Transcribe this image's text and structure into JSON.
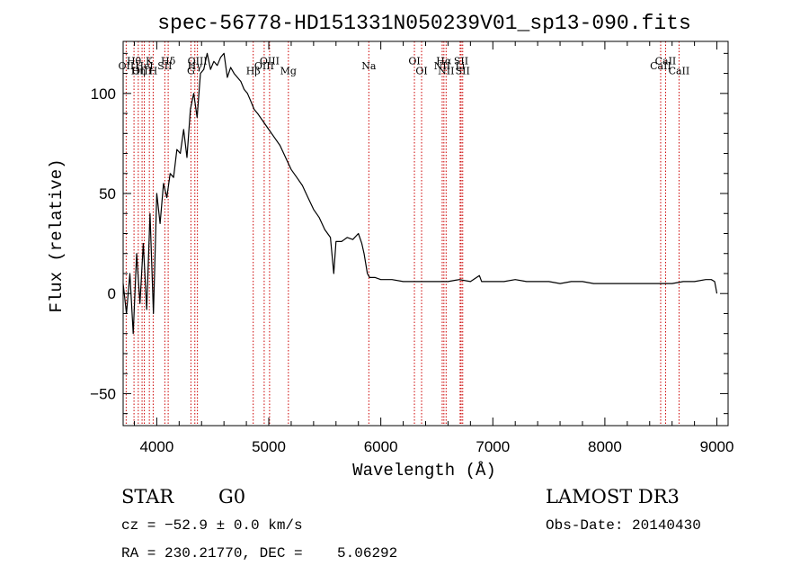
{
  "chart_data": {
    "type": "line",
    "title": "spec-56778-HD151331N050239V01_sp13-090.fits",
    "xlabel": "Wavelength (Å)",
    "ylabel": "Flux (relative)",
    "xlim": [
      3700,
      9100
    ],
    "ylim": [
      -66,
      126
    ],
    "xticks": [
      4000,
      5000,
      6000,
      7000,
      8000,
      9000
    ],
    "yticks": [
      -50,
      0,
      50,
      100
    ],
    "line_color": "#000000",
    "marker_color": "#cc0000",
    "series": [
      {
        "name": "flux",
        "x": [
          3700,
          3730,
          3760,
          3790,
          3820,
          3850,
          3880,
          3910,
          3940,
          3970,
          4000,
          4030,
          4060,
          4090,
          4120,
          4150,
          4180,
          4210,
          4240,
          4270,
          4300,
          4330,
          4360,
          4390,
          4420,
          4450,
          4480,
          4510,
          4540,
          4570,
          4600,
          4630,
          4660,
          4690,
          4720,
          4750,
          4780,
          4810,
          4840,
          4870,
          4900,
          4950,
          5000,
          5050,
          5100,
          5150,
          5200,
          5250,
          5300,
          5350,
          5400,
          5450,
          5500,
          5550,
          5580,
          5600,
          5650,
          5700,
          5750,
          5800,
          5830,
          5850,
          5880,
          5900,
          5950,
          6000,
          6100,
          6200,
          6300,
          6400,
          6500,
          6600,
          6700,
          6800,
          6880,
          6900,
          7000,
          7100,
          7200,
          7300,
          7400,
          7500,
          7600,
          7700,
          7800,
          7900,
          8000,
          8100,
          8200,
          8300,
          8400,
          8500,
          8600,
          8700,
          8800,
          8900,
          8950,
          8980,
          8990,
          9000
        ],
        "y": [
          5,
          -10,
          10,
          -20,
          20,
          -5,
          25,
          -8,
          40,
          -10,
          50,
          35,
          55,
          48,
          60,
          58,
          72,
          70,
          82,
          68,
          92,
          100,
          88,
          110,
          112,
          120,
          112,
          116,
          114,
          118,
          120,
          108,
          113,
          110,
          108,
          106,
          102,
          100,
          96,
          92,
          90,
          86,
          82,
          78,
          74,
          68,
          62,
          58,
          54,
          48,
          42,
          38,
          32,
          28,
          10,
          26,
          26,
          28,
          27,
          30,
          25,
          20,
          10,
          8,
          8,
          7,
          7,
          6,
          6,
          6,
          6,
          6,
          7,
          6,
          9,
          6,
          6,
          6,
          7,
          6,
          6,
          6,
          5,
          6,
          6,
          5,
          5,
          5,
          5,
          5,
          5,
          5,
          5,
          6,
          6,
          7,
          7,
          6,
          3,
          0
        ]
      }
    ],
    "lines": [
      {
        "label": "Hθ",
        "x": 3797,
        "label_y": 114.5
      },
      {
        "label": "OII",
        "x": 3727,
        "label_y": 112
      },
      {
        "label": "OIII",
        "x": 3869,
        "label_y": 109.5
      },
      {
        "label": "K",
        "x": 3934,
        "label_y": 114.5
      },
      {
        "label": "HeI",
        "x": 3889,
        "label_y": 112
      },
      {
        "label": "Hη",
        "x": 3835,
        "label_y": 109.5
      },
      {
        "label": "Hδ",
        "x": 4102,
        "label_y": 114.5
      },
      {
        "label": "SII",
        "x": 4072,
        "label_y": 112
      },
      {
        "label": "H",
        "x": 3968,
        "label_y": 109.5
      },
      {
        "label": "OIII",
        "x": 4363,
        "label_y": 114.5
      },
      {
        "label": "Hγ",
        "x": 4340,
        "label_y": 112
      },
      {
        "label": "G",
        "x": 4305,
        "label_y": 109.5
      },
      {
        "label": "Hβ",
        "x": 4861,
        "label_y": 109.5
      },
      {
        "label": "OIII",
        "x": 5007,
        "label_y": 114.5
      },
      {
        "label": "OIII",
        "x": 4959,
        "label_y": 112
      },
      {
        "label": "Mg",
        "x": 5175,
        "label_y": 109.5
      },
      {
        "label": "Na",
        "x": 5893,
        "label_y": 112
      },
      {
        "label": "OI",
        "x": 6300,
        "label_y": 114.5
      },
      {
        "label": "OI",
        "x": 6364,
        "label_y": 109.5
      },
      {
        "label": "Hα",
        "x": 6563,
        "label_y": 114.5
      },
      {
        "label": "NII",
        "x": 6548,
        "label_y": 112
      },
      {
        "label": "NII",
        "x": 6583,
        "label_y": 109.5
      },
      {
        "label": "SII",
        "x": 6717,
        "label_y": 114.5
      },
      {
        "label": "Li",
        "x": 6708,
        "label_y": 112
      },
      {
        "label": "SII",
        "x": 6731,
        "label_y": 109.5
      },
      {
        "label": "CaII",
        "x": 8542,
        "label_y": 114.5
      },
      {
        "label": "CaII",
        "x": 8498,
        "label_y": 112
      },
      {
        "label": "CaII",
        "x": 8662,
        "label_y": 109.5
      }
    ]
  },
  "info": {
    "object_class": "STAR",
    "subclass": "G0",
    "survey": "LAMOST DR3",
    "redshift": "cz = −52.9 ± 0.0 km/s",
    "obs_date": "Obs-Date: 20140430",
    "coords": "RA = 230.21770, DEC =    5.06292"
  }
}
